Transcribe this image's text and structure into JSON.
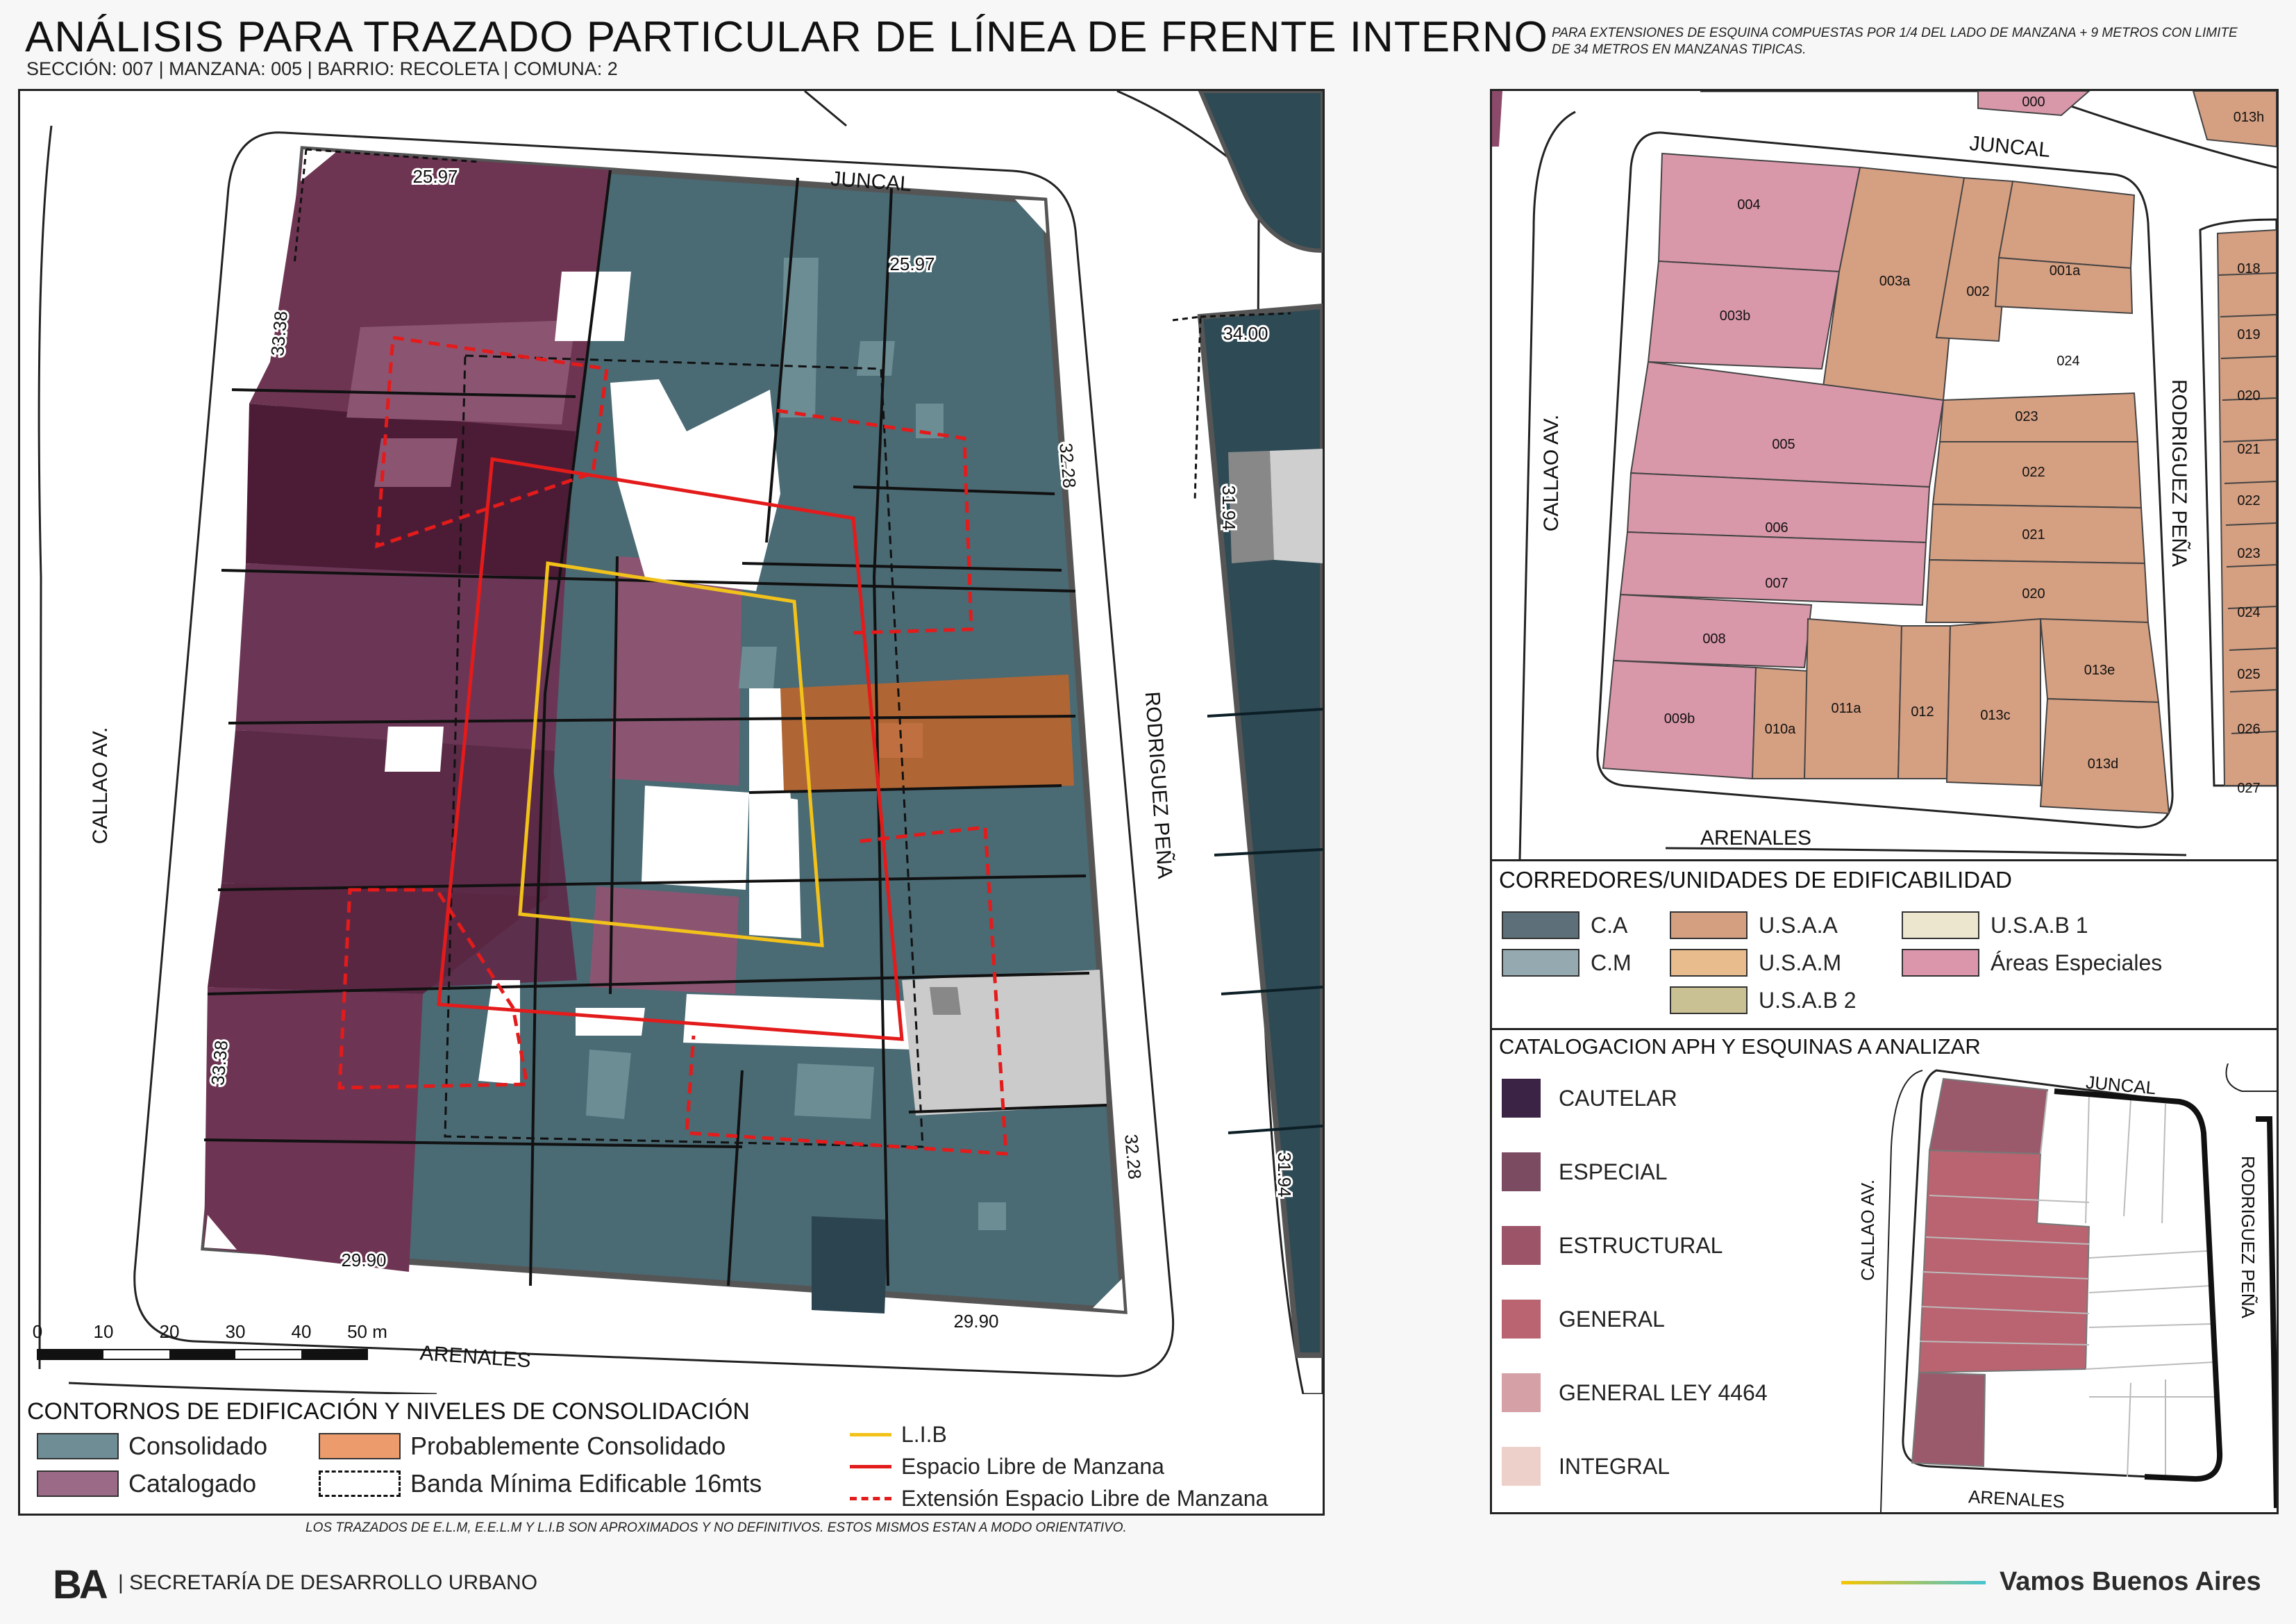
{
  "header": {
    "title": "ANÁLISIS PARA TRAZADO PARTICULAR DE LÍNEA DE FRENTE INTERNO",
    "subtitle": "SECCIÓN: 007 |  MANZANA: 005 | BARRIO: RECOLETA | COMUNA: 2",
    "note": "PARA EXTENSIONES DE ESQUINA COMPUESTAS POR 1/4 DEL LADO DE MANZANA + 9 METROS CON LIMITE DE 34 METROS EN MANZANAS TIPICAS."
  },
  "main_map": {
    "streets": {
      "north": "JUNCAL",
      "south": "ARENALES",
      "west": "CALLAO AV.",
      "east": "RODRIGUEZ PEÑA"
    },
    "dimensions": {
      "nw_top": "25.97",
      "ne_top": "25.97",
      "nw_left": "33.38",
      "ne_right": "32.28",
      "sw_left": "33.38",
      "se_right": "32.28",
      "sw_bottom": "29.90",
      "se_bottom": "29.90",
      "east_block_top": "34.00",
      "east_block_left": "31.94",
      "east_block_left_lower": "31.94"
    },
    "scale": {
      "ticks": [
        "0",
        "10",
        "20",
        "30",
        "40",
        "50 m"
      ]
    }
  },
  "legend_main": {
    "title": "CONTORNOS DE EDIFICACIÓN Y NIVELES DE CONSOLIDACIÓN",
    "consolidado": "Consolidado",
    "catalogado": "Catalogado",
    "probablemente": "Probablemente Consolidado",
    "banda": "Banda Mínima Edificable 16mts",
    "lib": "L.I.B",
    "elm": "Espacio Libre de Manzana",
    "eelm": "Extensión Espacio Libre de Manzana"
  },
  "parcel_map": {
    "streets": {
      "north": "JUNCAL",
      "south": "ARENALES",
      "west": "CALLAO AV.",
      "east": "RODRIGUEZ PEÑA"
    },
    "parcels": [
      "004",
      "003b",
      "003a",
      "002",
      "001a",
      "024",
      "005",
      "023",
      "022",
      "006",
      "021",
      "007",
      "020",
      "008",
      "013e",
      "009b",
      "010a",
      "011a",
      "012",
      "013c",
      "013d"
    ],
    "neighbor_top": "000",
    "neighbor_tr": "013h",
    "east_column": [
      "018",
      "019",
      "020",
      "021",
      "022",
      "023",
      "024",
      "025",
      "026",
      "027"
    ]
  },
  "legend_corredores": {
    "title": "CORREDORES/UNIDADES DE EDIFICABILIDAD",
    "items": [
      {
        "label": "C.A",
        "color": "#5d6f78"
      },
      {
        "label": "C.M",
        "color": "#94aab0"
      },
      {
        "label": "U.S.A.A",
        "color": "#d49f81"
      },
      {
        "label": "U.S.A.M",
        "color": "#e9bc8d"
      },
      {
        "label": "U.S.A.B 2",
        "color": "#c9c193"
      },
      {
        "label": "U.S.A.B 1",
        "color": "#ede6cf"
      },
      {
        "label": "Áreas Especiales",
        "color": "#dc96ac"
      }
    ]
  },
  "legend_catalog": {
    "title": "CATALOGACION APH Y ESQUINAS A ANALIZAR",
    "items": [
      {
        "label": "CAUTELAR",
        "color": "#3a2345"
      },
      {
        "label": "ESPECIAL",
        "color": "#7b4b62"
      },
      {
        "label": "ESTRUCTURAL",
        "color": "#9c5468"
      },
      {
        "label": "GENERAL",
        "color": "#b96470"
      },
      {
        "label": "GENERAL LEY 4464",
        "color": "#d6a1a6"
      },
      {
        "label": "INTEGRAL",
        "color": "#ecd0c9"
      }
    ],
    "streets": {
      "north": "JUNCAL",
      "south": "ARENALES",
      "west": "CALLAO AV.",
      "east": "RODRIGUEZ PEÑA"
    }
  },
  "footer": {
    "note": "LOS TRAZADOS DE E.L.M, E.E.L.M Y L.I.B SON APROXIMADOS Y NO DEFINITIVOS. ESTOS MISMOS ESTAN A MODO ORIENTATIVO.",
    "logo": "BA",
    "secretaria": "| SECRETARÍA DE DESARROLLO URBANO",
    "slogan": "Vamos Buenos Aires"
  },
  "colors": {
    "consolidado": "#6f8d95",
    "catalogado": "#9a6a86",
    "probablemente": "#ec9c6c",
    "lib": "#f2c21b",
    "elm": "#e31b1b"
  }
}
